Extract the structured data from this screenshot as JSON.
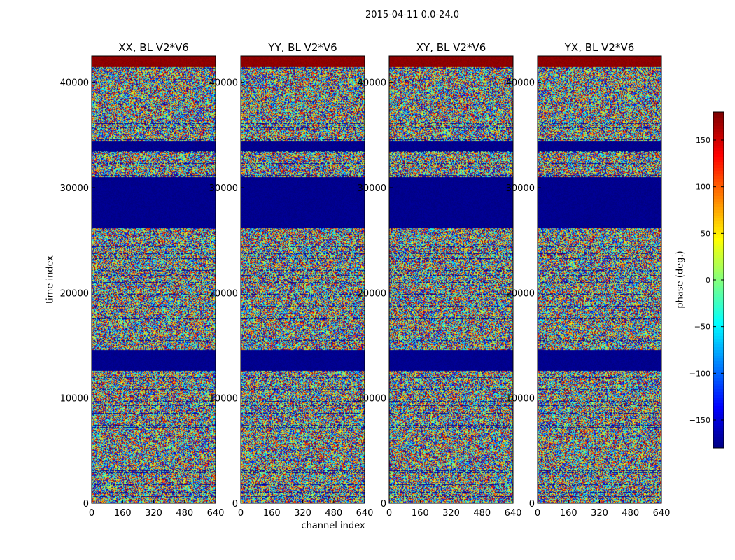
{
  "suptitle": "2015-04-11 0.0-24.0",
  "chart_data": {
    "type": "heatmap",
    "xlabel": "channel index",
    "ylabel": "time index",
    "x_range": [
      0,
      640
    ],
    "y_range": [
      0,
      42500
    ],
    "x_ticks": [
      "0",
      "160",
      "320",
      "480",
      "640"
    ],
    "y_ticks": [
      "0",
      "10000",
      "20000",
      "30000",
      "40000"
    ],
    "colorbar": {
      "label": "phase (deg.)",
      "range": [
        -180,
        180
      ],
      "ticks": [
        "150",
        "100",
        "50",
        "0",
        "−50",
        "−100",
        "−150"
      ]
    },
    "panels": [
      {
        "title": "XX, BL V2*V6"
      },
      {
        "title": "YY, BL V2*V6"
      },
      {
        "title": "XY, BL V2*V6"
      },
      {
        "title": "YX, BL V2*V6"
      }
    ],
    "bands": [
      {
        "from": 41500,
        "to": 42500,
        "phase": 175
      },
      {
        "from": 33500,
        "to": 34400,
        "phase": -175
      },
      {
        "from": 26200,
        "to": 31000,
        "phase": -175
      },
      {
        "from": 12600,
        "to": 14600,
        "phase": -175
      }
    ]
  }
}
